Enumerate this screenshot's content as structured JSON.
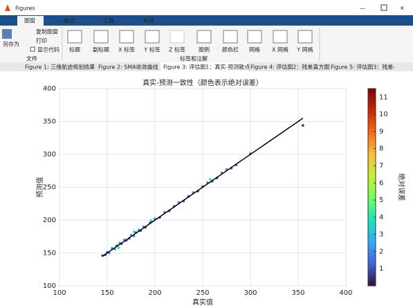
{
  "window": {
    "title": "Figures"
  },
  "ribbon_tabs": [
    "图窗",
    "格式",
    "工具",
    "布局"
  ],
  "file_group": {
    "save": "另存为",
    "copy": "复制图窗",
    "print": "打印",
    "code": "显示代码",
    "label": "文件"
  },
  "label_group": {
    "buttons": [
      "标题",
      "副标题",
      "X 标签",
      "Y 标签",
      "Z 标签",
      "图例",
      "颜色栏",
      "网格",
      "X 网格",
      "Y 网格"
    ],
    "label": "标签和注解"
  },
  "figure_tabs": [
    "Figure 1: 三维航迹规划结果",
    "Figure 2: SMA收敛曲线",
    "Figure 3: 评估图1：真实-预测散点",
    "Figure 4: 评估图2：残差直方图",
    "Figure 5: 评估图3：残差-"
  ],
  "chart_data": {
    "type": "scatter",
    "title": "真实-预测一致性（颜色表示绝对误差）",
    "x_label": "真实值",
    "y_label": "预测值",
    "x": [
      145,
      148,
      150,
      152,
      155,
      158,
      160,
      162,
      163,
      165,
      168,
      170,
      173,
      175,
      178,
      178,
      180,
      183,
      185,
      188,
      190,
      195,
      196,
      200,
      205,
      210,
      215,
      220,
      225,
      230,
      235,
      240,
      245,
      250,
      255,
      258,
      260,
      265,
      270,
      275,
      280,
      285,
      300,
      355
    ],
    "values": [
      146,
      147,
      151,
      150,
      157,
      156,
      161,
      158,
      165,
      164,
      170,
      169,
      172,
      177,
      176,
      182,
      181,
      185,
      184,
      190,
      189,
      196,
      199,
      202,
      204,
      212,
      214,
      221,
      227,
      229,
      236,
      242,
      244,
      251,
      257,
      262,
      259,
      264,
      272,
      277,
      279,
      284,
      301,
      344
    ],
    "color_values": [
      1,
      1,
      1,
      2,
      2,
      2,
      1,
      4,
      2,
      1,
      2,
      1,
      1,
      2,
      2,
      4,
      1,
      2,
      1,
      2,
      1,
      1,
      3,
      2,
      1,
      2,
      1,
      1,
      2,
      1,
      1,
      2,
      1,
      1,
      2,
      4,
      1,
      1,
      2,
      2,
      1,
      1,
      1,
      11
    ],
    "reference_line": {
      "x": [
        145,
        355
      ],
      "y": [
        145,
        355
      ],
      "color": "#000000"
    },
    "xlim": [
      100,
      400
    ],
    "xticks": [
      100,
      150,
      200,
      250,
      300,
      350,
      400
    ],
    "ylim": [
      100,
      400
    ],
    "yticks": [
      100,
      150,
      200,
      250,
      300,
      350,
      400
    ],
    "grid": true,
    "clim": [
      0,
      11.5
    ],
    "colorbar_ticks": [
      1,
      2,
      3,
      4,
      5,
      6,
      7,
      8,
      9,
      10,
      11
    ],
    "colorbar_label": "绝对误差",
    "colormap": [
      "#30123b",
      "#4662d7",
      "#36aaf9",
      "#1ae4b6",
      "#72fe5e",
      "#c7ef34",
      "#fabf3c",
      "#f66b19",
      "#c92903",
      "#7a0403"
    ]
  }
}
